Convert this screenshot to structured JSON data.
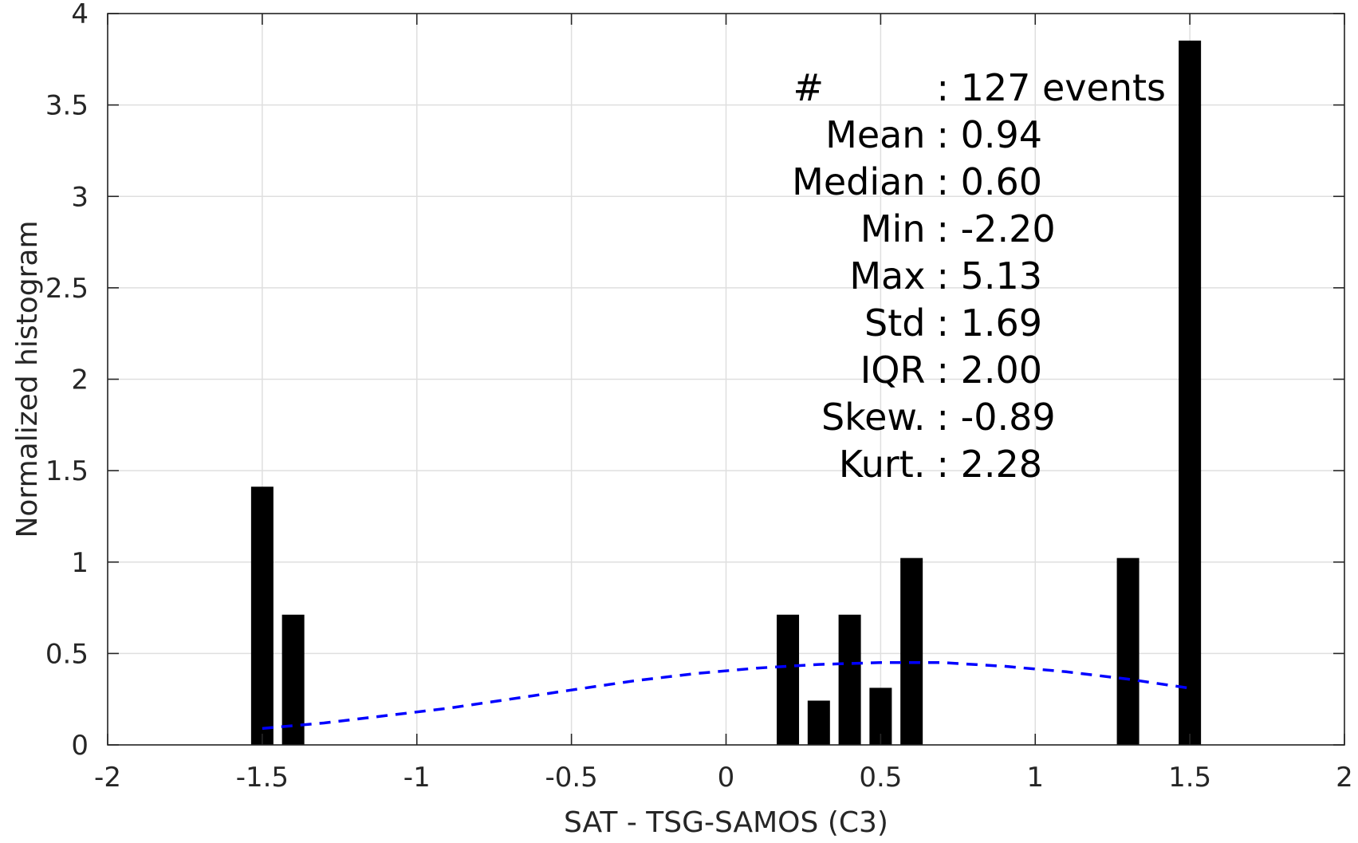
{
  "chart_data": {
    "type": "bar",
    "title": "",
    "xlabel": "SAT - TSG-SAMOS (C3)",
    "ylabel": "Normalized histogram",
    "xlim": [
      -2,
      2
    ],
    "ylim": [
      0,
      4
    ],
    "xticks": [
      -2,
      -1.5,
      -1,
      -0.5,
      0,
      0.5,
      1,
      1.5,
      2
    ],
    "xtick_labels": [
      "-2",
      "-1.5",
      "-1",
      "-0.5",
      "0",
      "0.5",
      "1",
      "1.5",
      "2"
    ],
    "yticks": [
      0,
      0.5,
      1,
      1.5,
      2,
      2.5,
      3,
      3.5,
      4
    ],
    "ytick_labels": [
      "0",
      "0.5",
      "1",
      "1.5",
      "2",
      "2.5",
      "3",
      "3.5",
      "4"
    ],
    "grid": true,
    "bar_color": "#000000",
    "bars": [
      {
        "x": -1.5,
        "value": 1.41
      },
      {
        "x": -1.4,
        "value": 0.71
      },
      {
        "x": 0.2,
        "value": 0.71
      },
      {
        "x": 0.3,
        "value": 0.24
      },
      {
        "x": 0.4,
        "value": 0.71
      },
      {
        "x": 0.5,
        "value": 0.31
      },
      {
        "x": 0.6,
        "value": 1.02
      },
      {
        "x": 1.3,
        "value": 1.02
      },
      {
        "x": 1.5,
        "value": 3.85
      }
    ],
    "fit_curve": {
      "style": "dashed",
      "color": "#0000ff",
      "x": [
        -1.5,
        -1.3,
        -1.1,
        -0.9,
        -0.7,
        -0.5,
        -0.3,
        -0.1,
        0.1,
        0.3,
        0.5,
        0.7,
        0.9,
        1.1,
        1.3,
        1.5
      ],
      "y": [
        0.09,
        0.12,
        0.16,
        0.2,
        0.25,
        0.3,
        0.35,
        0.39,
        0.42,
        0.44,
        0.45,
        0.45,
        0.43,
        0.4,
        0.36,
        0.31
      ]
    },
    "annotations": [
      {
        "label": "#",
        "value": ": 127 events"
      },
      {
        "label": "Mean",
        "value": ": 0.94"
      },
      {
        "label": "Median",
        "value": ": 0.60"
      },
      {
        "label": "Min",
        "value": ": -2.20"
      },
      {
        "label": "Max",
        "value": ": 5.13"
      },
      {
        "label": "Std",
        "value": ": 1.69"
      },
      {
        "label": "IQR",
        "value": ": 2.00"
      },
      {
        "label": "Skew.",
        "value": ": -0.89"
      },
      {
        "label": "Kurt.",
        "value": ": 2.28"
      }
    ]
  }
}
